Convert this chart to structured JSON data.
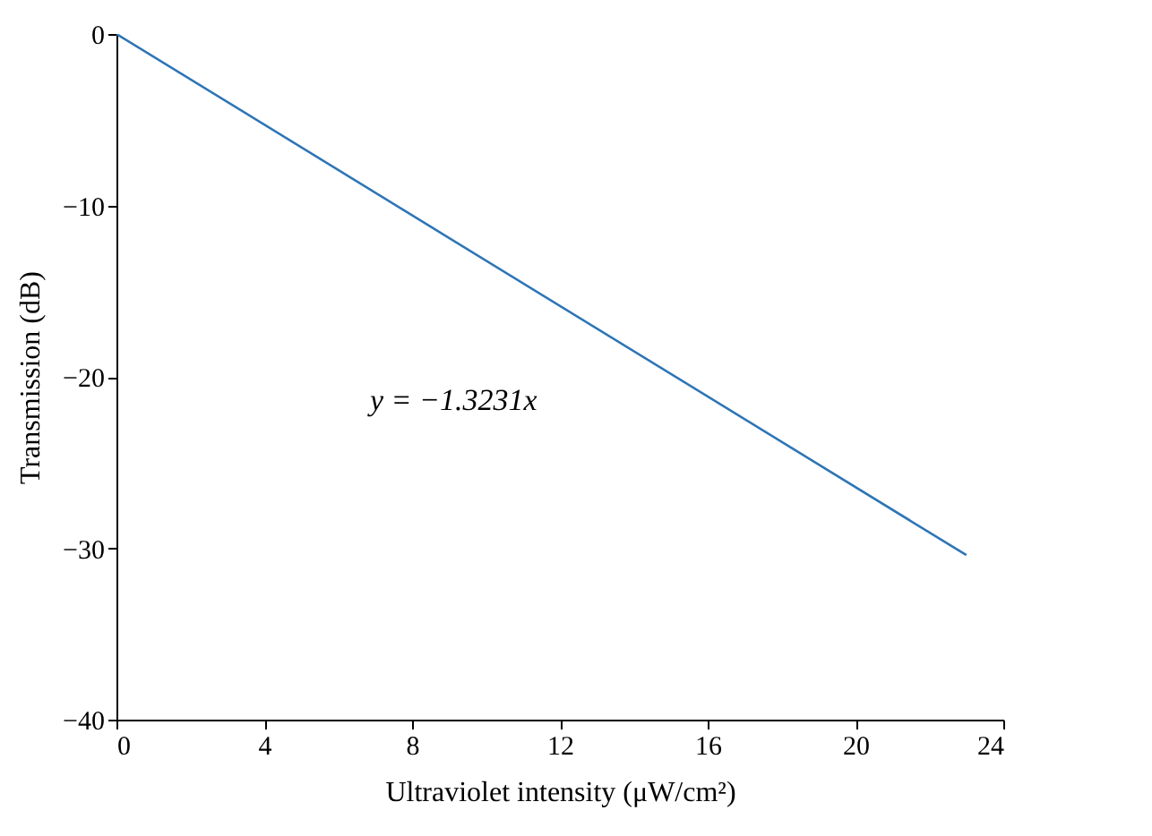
{
  "chart_data": {
    "type": "line",
    "xlabel": "Ultraviolet intensity (μW/cm²)",
    "ylabel": "Transmission (dB)",
    "x": [
      0,
      23
    ],
    "series": [
      {
        "color": "#2e75b6",
        "values": [
          0,
          -30.4
        ]
      }
    ],
    "xlim": [
      0,
      24
    ],
    "xticks": [
      0,
      4,
      8,
      12,
      16,
      20,
      24
    ],
    "ylim": [
      -40,
      0
    ],
    "yticks": [
      -40,
      -30,
      -20,
      -10,
      0
    ],
    "annotations": [
      "y = −1.3231x"
    ],
    "grid": false,
    "marker": "none",
    "line_style": "solid"
  }
}
